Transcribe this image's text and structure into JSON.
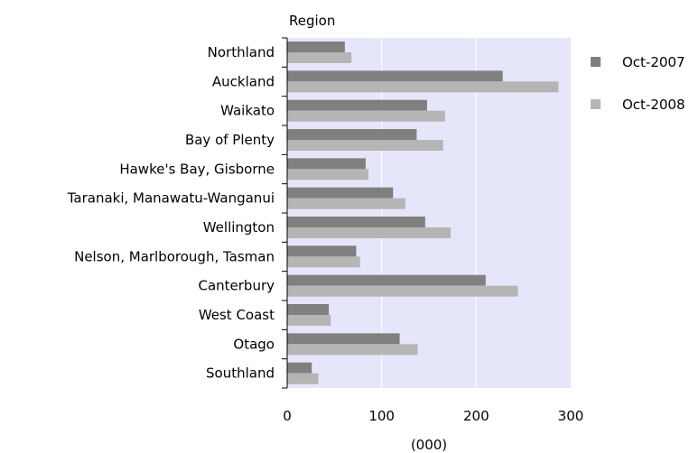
{
  "chart_data": {
    "type": "bar",
    "orientation": "horizontal",
    "title": "",
    "ylabel": "Region",
    "xlabel": "(000)",
    "categories": [
      "Northland",
      "Auckland",
      "Waikato",
      "Bay of Plenty",
      "Hawke's Bay, Gisborne",
      "Taranaki, Manawatu-Wanganui",
      "Wellington",
      "Nelson, Marlborough, Tasman",
      "Canterbury",
      "West Coast",
      "Otago",
      "Southland"
    ],
    "series": [
      {
        "name": "Oct-2007",
        "values": [
          61,
          228,
          148,
          137,
          83,
          112,
          146,
          73,
          210,
          44,
          119,
          26
        ],
        "color": "#808080"
      },
      {
        "name": "Oct-2008",
        "values": [
          68,
          287,
          167,
          165,
          86,
          125,
          173,
          77,
          244,
          46,
          138,
          33
        ],
        "color": "#b5b5b5"
      }
    ],
    "xlim": [
      0,
      300
    ],
    "xticks": [
      "0",
      "100",
      "200",
      "300"
    ],
    "grid": true,
    "legend_position": "right",
    "plot_background": "#e6e6fa"
  }
}
